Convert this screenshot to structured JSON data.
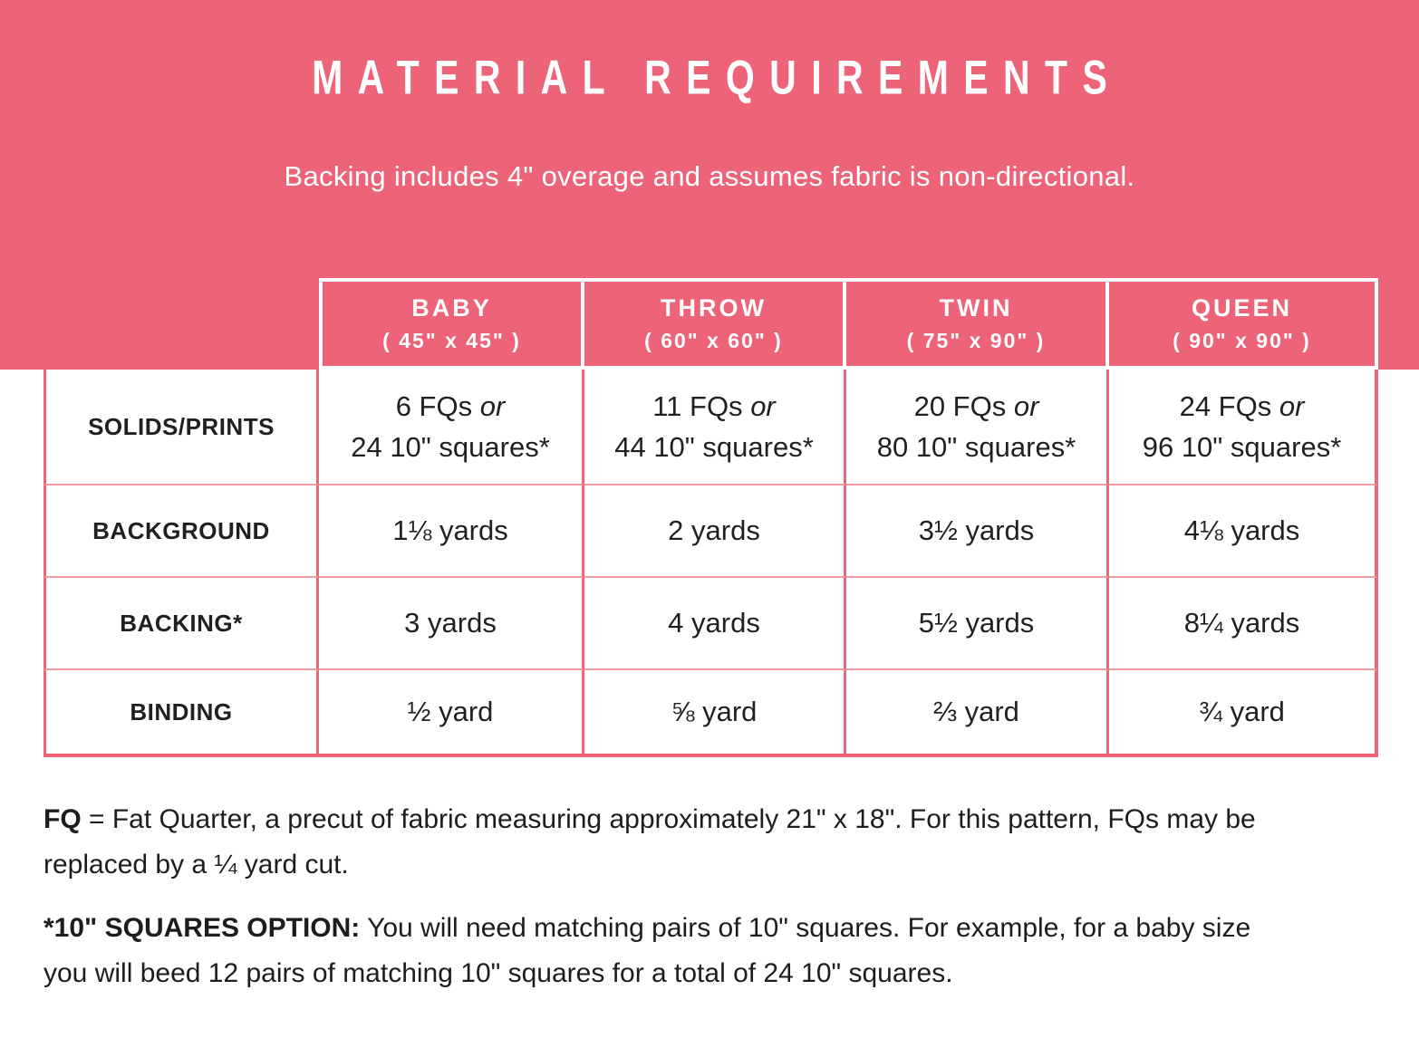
{
  "theme": {
    "pink": "#ED6378",
    "border_strong": "#F0687D",
    "border_light": "#F49AA5",
    "text": "#231F20",
    "white": "#FFFFFF"
  },
  "header": {
    "title": "MATERIAL REQUIREMENTS",
    "subtitle": "Backing includes 4\" overage and assumes fabric is non-directional."
  },
  "table": {
    "columns": [
      {
        "name": "BABY",
        "dimensions": "( 45\" x 45\" )"
      },
      {
        "name": "THROW",
        "dimensions": "( 60\" x 60\" )"
      },
      {
        "name": "TWIN",
        "dimensions": "( 75\" x 90\" )"
      },
      {
        "name": "QUEEN",
        "dimensions": "( 90\" x 90\" )"
      }
    ],
    "rows": [
      {
        "label": "SOLIDS/PRINTS",
        "values": [
          {
            "line1": "6 FQs ",
            "conj": "or",
            "line2": "24 10\" squares*"
          },
          {
            "line1": "11 FQs ",
            "conj": "or",
            "line2": "44 10\" squares*"
          },
          {
            "line1": "20 FQs ",
            "conj": "or",
            "line2": "80 10\" squares*"
          },
          {
            "line1": "24 FQs ",
            "conj": "or",
            "line2": "96 10\" squares*"
          }
        ]
      },
      {
        "label": "BACKGROUND",
        "values": [
          "1⅛ yards",
          "2 yards",
          "3½ yards",
          "4⅛ yards"
        ]
      },
      {
        "label": "BACKING*",
        "values": [
          "3 yards",
          "4 yards",
          "5½ yards",
          "8¼ yards"
        ]
      },
      {
        "label": "BINDING",
        "values": [
          "½ yard",
          "⅝ yard",
          "⅔ yard",
          "¾ yard"
        ]
      }
    ]
  },
  "notes": [
    {
      "bold": "FQ",
      "line1_rest": " = Fat Quarter, a precut of fabric measuring approximately 21\" x 18\". For this pattern, FQs may be",
      "line2": "replaced by a ¼ yard cut."
    },
    {
      "bold": "*10\" SQUARES OPTION:",
      "line1_rest": " You will need matching pairs of 10\" squares. For example, for a baby size",
      "line2": "you will beed 12 pairs of matching 10\" squares for a total of 24 10\" squares."
    }
  ]
}
